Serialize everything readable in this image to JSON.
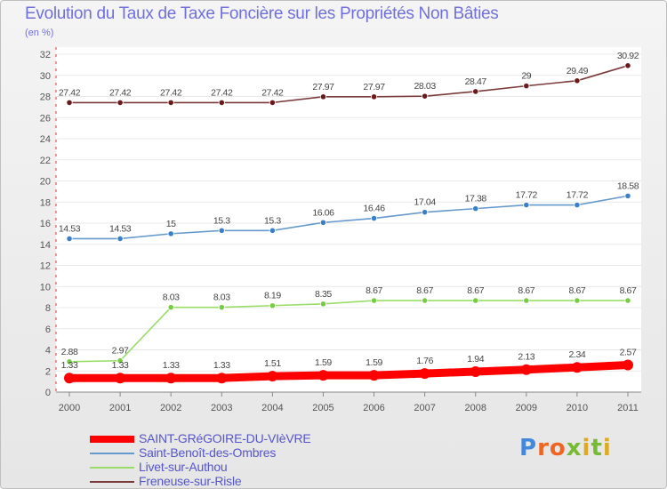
{
  "chart_data": {
    "type": "line",
    "title": "Evolution du Taux de Taxe Foncière sur les Propriétés Non Bâties",
    "ylabel": "(en %)",
    "xlabel": "",
    "ylim": [
      0,
      32
    ],
    "yticks": [
      0,
      2,
      4,
      6,
      8,
      10,
      12,
      14,
      16,
      18,
      20,
      22,
      24,
      26,
      28,
      30,
      32
    ],
    "ytick_labels": [
      "0",
      "2",
      "4",
      "6",
      "8",
      "10",
      "12",
      "14",
      "16",
      "18",
      "20",
      "22",
      "24",
      "26",
      "28",
      "30",
      "32"
    ],
    "categories": [
      "2000",
      "2001",
      "2002",
      "2003",
      "2004",
      "2005",
      "2006",
      "2007",
      "2008",
      "2009",
      "2010",
      "2011"
    ],
    "series": [
      {
        "name": "SAINT-GRéGOIRE-DU-VIèVRE",
        "color": "#ff0000",
        "marker": "#ff0000",
        "values": [
          1.33,
          1.33,
          1.33,
          1.33,
          1.51,
          1.59,
          1.59,
          1.76,
          1.94,
          2.13,
          2.34,
          2.57
        ],
        "labels": [
          "1.33",
          "1.33",
          "1.33",
          "1.33",
          "1.51",
          "1.59",
          "1.59",
          "1.76",
          "1.94",
          "2.13",
          "2.34",
          "2.57"
        ]
      },
      {
        "name": "Saint-Benoît-des-Ombres",
        "color": "#6699cc",
        "marker": "#3a80c8",
        "values": [
          14.53,
          14.53,
          15,
          15.3,
          15.3,
          16.06,
          16.46,
          17.04,
          17.38,
          17.72,
          17.72,
          18.58
        ],
        "labels": [
          "14.53",
          "14.53",
          "15",
          "15.3",
          "15.3",
          "16.06",
          "16.46",
          "17.04",
          "17.38",
          "17.72",
          "17.72",
          "18.58"
        ]
      },
      {
        "name": "Livet-sur-Authou",
        "color": "#99dd66",
        "marker": "#77cc44",
        "values": [
          2.88,
          2.97,
          8.03,
          8.03,
          8.19,
          8.35,
          8.67,
          8.67,
          8.67,
          8.67,
          8.67,
          8.67
        ],
        "labels": [
          "2.88",
          "2.97",
          "8.03",
          "8.03",
          "8.19",
          "8.35",
          "8.67",
          "8.67",
          "8.67",
          "8.67",
          "8.67",
          "8.67"
        ]
      },
      {
        "name": "Freneuse-sur-Risle",
        "color": "#7a3a3a",
        "marker": "#6a1a1a",
        "values": [
          27.42,
          27.42,
          27.42,
          27.42,
          27.42,
          27.97,
          27.97,
          28.03,
          28.47,
          29,
          29.49,
          30.92
        ],
        "labels": [
          "27.42",
          "27.42",
          "27.42",
          "27.42",
          "27.42",
          "27.97",
          "27.97",
          "28.03",
          "28.47",
          "29",
          "29.49",
          "30.92"
        ]
      }
    ]
  },
  "logo": {
    "text": "Proxiti",
    "letters": [
      "P",
      "r",
      "o",
      "x",
      "i",
      "t",
      "i"
    ],
    "colors": [
      "#4488dd",
      "#ee6622",
      "#ee6622",
      "#77bb33",
      "#ddaa22",
      "#77bb33",
      "#ddaa22"
    ]
  }
}
